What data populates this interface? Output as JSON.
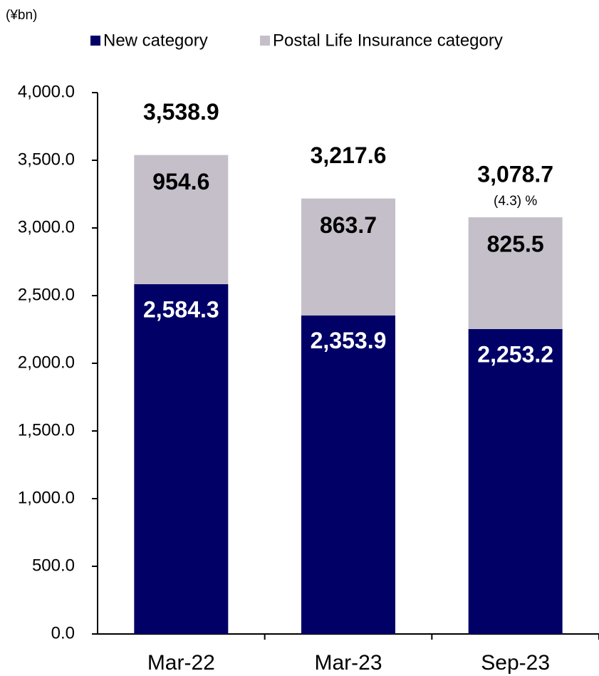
{
  "chart_data": {
    "type": "stacked_bar",
    "unit_label": "(¥bn)",
    "categories": [
      "Mar-22",
      "Mar-23",
      "Sep-23"
    ],
    "series": [
      {
        "name": "New category",
        "color": "#000066",
        "values": [
          2584.3,
          2353.9,
          2253.2
        ],
        "value_labels": [
          "2,584.3",
          "2,353.9",
          "2,253.2"
        ],
        "label_color": "#ffffff"
      },
      {
        "name": "Postal Life Insurance category",
        "color": "#c5bfca",
        "values": [
          954.6,
          863.7,
          825.5
        ],
        "label_color": "#000000"
      }
    ],
    "totals": {
      "values": [
        3538.9,
        3217.6,
        3078.7
      ],
      "value_labels": [
        "3,538.9",
        "3,217.6",
        "3,078.7"
      ]
    },
    "annotation": "(4.3) %",
    "ylim": [
      0,
      4000
    ],
    "yticks": [
      {
        "value": 0,
        "label": "0.0"
      },
      {
        "value": 500,
        "label": "500.0"
      },
      {
        "value": 1000,
        "label": "1,000.0"
      },
      {
        "value": 1500,
        "label": "1,500.0"
      },
      {
        "value": 2000,
        "label": "2,000.0"
      },
      {
        "value": 2500,
        "label": "2,500.0"
      },
      {
        "value": 3000,
        "label": "3,000.0"
      },
      {
        "value": 3500,
        "label": "3,500.0"
      },
      {
        "value": 4000,
        "label": "4,000.0"
      }
    ],
    "grid": false
  }
}
